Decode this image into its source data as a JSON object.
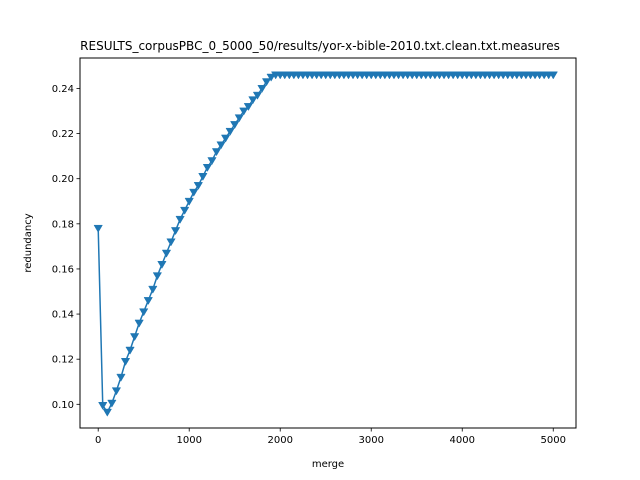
{
  "chart_data": {
    "type": "line",
    "title": "RESULTS_corpusPBC_0_5000_50/results/yor-x-bible-2010.txt.clean.txt.measures",
    "xlabel": "merge",
    "ylabel": "redundancy",
    "xlim": [
      -200,
      5250
    ],
    "ylim": [
      0.0895,
      0.2535
    ],
    "xticks": [
      0,
      1000,
      2000,
      3000,
      4000,
      5000
    ],
    "yticks": [
      0.1,
      0.12,
      0.14,
      0.16,
      0.18,
      0.2,
      0.22,
      0.24
    ],
    "grid": false,
    "legend": "none",
    "marker": "triangle-down",
    "color": "#1f77b4",
    "series": [
      {
        "x": [
          0,
          50,
          100,
          150,
          200,
          250,
          300,
          350,
          400,
          450,
          500,
          550,
          600,
          650,
          700,
          750,
          800,
          850,
          900,
          950,
          1000,
          1050,
          1100,
          1150,
          1200,
          1250,
          1300,
          1350,
          1400,
          1450,
          1500,
          1550,
          1600,
          1650,
          1700,
          1750,
          1800,
          1850,
          1900,
          1950,
          2000,
          2050,
          2100,
          2150,
          2200,
          2250,
          2300,
          2350,
          2400,
          2450,
          2500,
          2550,
          2600,
          2650,
          2700,
          2750,
          2800,
          2850,
          2900,
          2950,
          3000,
          3050,
          3100,
          3150,
          3200,
          3250,
          3300,
          3350,
          3400,
          3450,
          3500,
          3550,
          3600,
          3650,
          3700,
          3750,
          3800,
          3850,
          3900,
          3950,
          4000,
          4050,
          4100,
          4150,
          4200,
          4250,
          4300,
          4350,
          4400,
          4450,
          4500,
          4550,
          4600,
          4650,
          4700,
          4750,
          4800,
          4850,
          4900,
          4950,
          5000
        ],
        "y": [
          0.178,
          0.0995,
          0.0965,
          0.1005,
          0.106,
          0.112,
          0.119,
          0.124,
          0.13,
          0.136,
          0.141,
          0.146,
          0.151,
          0.157,
          0.162,
          0.167,
          0.172,
          0.177,
          0.182,
          0.186,
          0.19,
          0.194,
          0.197,
          0.201,
          0.205,
          0.208,
          0.212,
          0.215,
          0.218,
          0.221,
          0.224,
          0.227,
          0.23,
          0.232,
          0.235,
          0.237,
          0.24,
          0.243,
          0.245,
          0.246,
          0.246,
          0.246,
          0.246,
          0.246,
          0.246,
          0.246,
          0.246,
          0.246,
          0.246,
          0.246,
          0.246,
          0.246,
          0.246,
          0.246,
          0.246,
          0.246,
          0.246,
          0.246,
          0.246,
          0.246,
          0.246,
          0.246,
          0.246,
          0.246,
          0.246,
          0.246,
          0.246,
          0.246,
          0.246,
          0.246,
          0.246,
          0.246,
          0.246,
          0.246,
          0.246,
          0.246,
          0.246,
          0.246,
          0.246,
          0.246,
          0.246,
          0.246,
          0.246,
          0.246,
          0.246,
          0.246,
          0.246,
          0.246,
          0.246,
          0.246,
          0.246,
          0.246,
          0.246,
          0.246,
          0.246,
          0.246,
          0.246,
          0.246,
          0.246,
          0.246,
          0.246
        ]
      }
    ]
  }
}
